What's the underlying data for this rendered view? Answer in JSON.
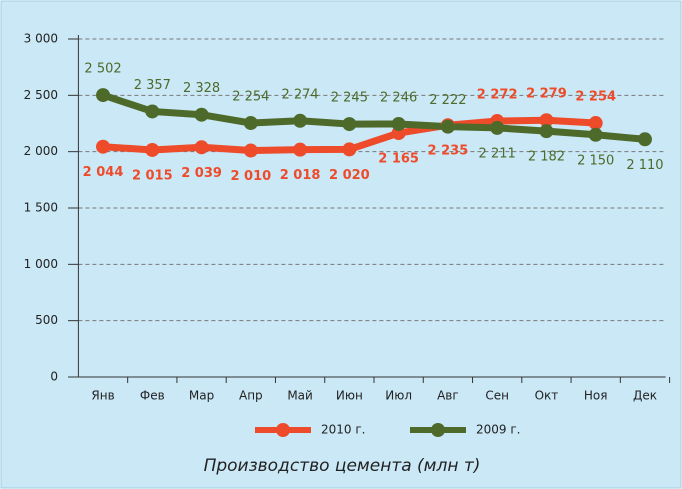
{
  "chart_data": {
    "type": "line",
    "title": "Производство цемента (млн т)",
    "categories": [
      "Янв",
      "Фев",
      "Мар",
      "Апр",
      "Май",
      "Июн",
      "Июл",
      "Авг",
      "Сен",
      "Окт",
      "Ноя",
      "Дек"
    ],
    "series": [
      {
        "name": "2010 г.",
        "color": "#ee4b2b",
        "values": [
          2044,
          2015,
          2039,
          2010,
          2018,
          2020,
          2165,
          2235,
          2272,
          2279,
          2254,
          null
        ],
        "value_labels": [
          "2 044",
          "2 015",
          "2 039",
          "2 010",
          "2 018",
          "2 020",
          "2 165",
          "2 235",
          "2 272",
          "2 279",
          "2 254",
          null
        ]
      },
      {
        "name": "2009 г.",
        "color": "#4d6a2b",
        "values": [
          2502,
          2357,
          2328,
          2254,
          2274,
          2245,
          2246,
          2222,
          2211,
          2182,
          2150,
          2110
        ],
        "value_labels": [
          "2 502",
          "2 357",
          "2 328",
          "2 254",
          "2 274",
          "2 245",
          "2 246",
          "2 222",
          "2 211",
          "2 182",
          "2 150",
          "2 110"
        ]
      }
    ],
    "ylim": [
      0,
      3000
    ],
    "yticks": [
      0,
      500,
      {
        "value": 1000,
        "label": "1 000"
      },
      {
        "value": 1500,
        "label": "1 500"
      },
      {
        "value": 2000,
        "label": "2 000"
      },
      {
        "value": 2500,
        "label": "2 500"
      },
      {
        "value": 3000,
        "label": "3 000"
      }
    ],
    "grid": true
  }
}
